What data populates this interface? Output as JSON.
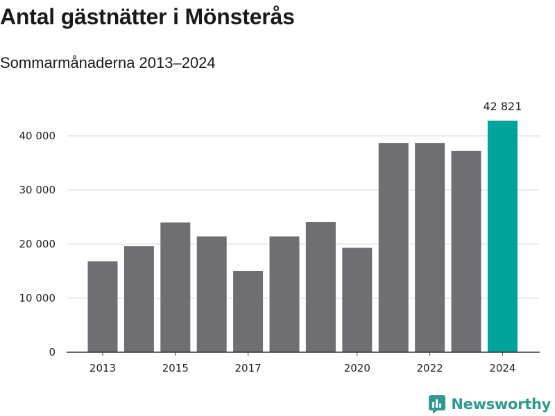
{
  "title": "Antal gästnätter i Mönsterås",
  "subtitle": "Sommarmånaderna 2013–2024",
  "brand": {
    "name": "Newsworthy",
    "icon": "newsworthy-logo-icon",
    "color": "#2f9a8d"
  },
  "colors": {
    "bar": "#6f6e73",
    "highlight": "#00a39b",
    "grid": "#d9d9d9",
    "axis": "#333333"
  },
  "chart_data": {
    "type": "bar",
    "categories": [
      "2013",
      "2014",
      "2015",
      "2016",
      "2017",
      "2018",
      "2019",
      "2020",
      "2021",
      "2022",
      "2023",
      "2024"
    ],
    "values": [
      16800,
      19600,
      24000,
      21400,
      15000,
      21400,
      24100,
      19300,
      38700,
      38700,
      37200,
      42821
    ],
    "highlight_index": 11,
    "x_tick_labels": [
      "2013",
      "",
      "2015",
      "",
      "2017",
      "",
      "",
      "2020",
      "",
      "2022",
      "",
      "2024"
    ],
    "y_ticks": [
      0,
      10000,
      20000,
      30000,
      40000
    ],
    "y_tick_labels": [
      "0",
      "10 000",
      "20 000",
      "30 000",
      "40 000"
    ],
    "ylim": [
      0,
      45000
    ],
    "data_labels": [
      {
        "index": 11,
        "text": "42 821"
      }
    ],
    "grid": true,
    "legend": "none",
    "xlabel": "",
    "ylabel": ""
  }
}
